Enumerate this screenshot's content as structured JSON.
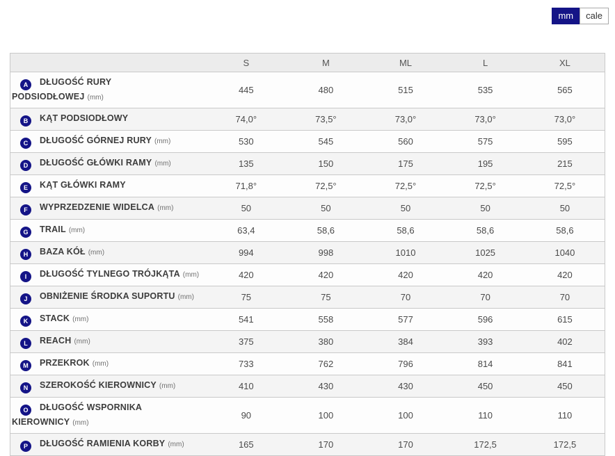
{
  "unit_toggle": {
    "options": [
      {
        "label": "mm",
        "selected": true
      },
      {
        "label": "cale",
        "selected": false
      }
    ]
  },
  "table": {
    "columns": [
      "S",
      "M",
      "ML",
      "L",
      "XL"
    ],
    "rows": [
      {
        "badge": "A",
        "label": "DŁUGOŚĆ RURY PODSIODŁOWEJ",
        "unit": "(mm)",
        "values": [
          "445",
          "480",
          "515",
          "535",
          "565"
        ]
      },
      {
        "badge": "B",
        "label": "KĄT PODSIODŁOWY",
        "unit": "",
        "values": [
          "74,0°",
          "73,5°",
          "73,0°",
          "73,0°",
          "73,0°"
        ]
      },
      {
        "badge": "C",
        "label": "DŁUGOŚĆ GÓRNEJ RURY",
        "unit": "(mm)",
        "values": [
          "530",
          "545",
          "560",
          "575",
          "595"
        ]
      },
      {
        "badge": "D",
        "label": "DŁUGOŚĆ GŁÓWKI RAMY",
        "unit": "(mm)",
        "values": [
          "135",
          "150",
          "175",
          "195",
          "215"
        ]
      },
      {
        "badge": "E",
        "label": "KĄT GŁÓWKI RAMY",
        "unit": "",
        "values": [
          "71,8°",
          "72,5°",
          "72,5°",
          "72,5°",
          "72,5°"
        ]
      },
      {
        "badge": "F",
        "label": "WYPRZEDZENIE WIDELCA",
        "unit": "(mm)",
        "values": [
          "50",
          "50",
          "50",
          "50",
          "50"
        ]
      },
      {
        "badge": "G",
        "label": "TRAIL",
        "unit": "(mm)",
        "values": [
          "63,4",
          "58,6",
          "58,6",
          "58,6",
          "58,6"
        ]
      },
      {
        "badge": "H",
        "label": "BAZA KÓŁ",
        "unit": "(mm)",
        "values": [
          "994",
          "998",
          "1010",
          "1025",
          "1040"
        ]
      },
      {
        "badge": "I",
        "label": "DŁUGOŚĆ TYLNEGO TRÓJKĄTA",
        "unit": "(mm)",
        "values": [
          "420",
          "420",
          "420",
          "420",
          "420"
        ]
      },
      {
        "badge": "J",
        "label": "OBNIŻENIE ŚRODKA SUPORTU",
        "unit": "(mm)",
        "values": [
          "75",
          "75",
          "70",
          "70",
          "70"
        ]
      },
      {
        "badge": "K",
        "label": "STACK",
        "unit": "(mm)",
        "values": [
          "541",
          "558",
          "577",
          "596",
          "615"
        ]
      },
      {
        "badge": "L",
        "label": "REACH",
        "unit": "(mm)",
        "values": [
          "375",
          "380",
          "384",
          "393",
          "402"
        ]
      },
      {
        "badge": "M",
        "label": "PRZEKROK",
        "unit": "(mm)",
        "values": [
          "733",
          "762",
          "796",
          "814",
          "841"
        ]
      },
      {
        "badge": "N",
        "label": "SZEROKOŚĆ KIEROWNICY",
        "unit": "(mm)",
        "values": [
          "410",
          "430",
          "430",
          "450",
          "450"
        ]
      },
      {
        "badge": "O",
        "label": "DŁUGOŚĆ WSPORNIKA KIEROWNICY",
        "unit": "(mm)",
        "values": [
          "90",
          "100",
          "100",
          "110",
          "110"
        ]
      },
      {
        "badge": "P",
        "label": "DŁUGOŚĆ RAMIENIA KORBY",
        "unit": "(mm)",
        "values": [
          "165",
          "170",
          "170",
          "172,5",
          "172,5"
        ]
      }
    ]
  },
  "colors": {
    "accent_navy": "#141487",
    "header_bg": "#ececec",
    "stripe_bg": "#f4f4f4",
    "border": "#c9c9c9"
  }
}
